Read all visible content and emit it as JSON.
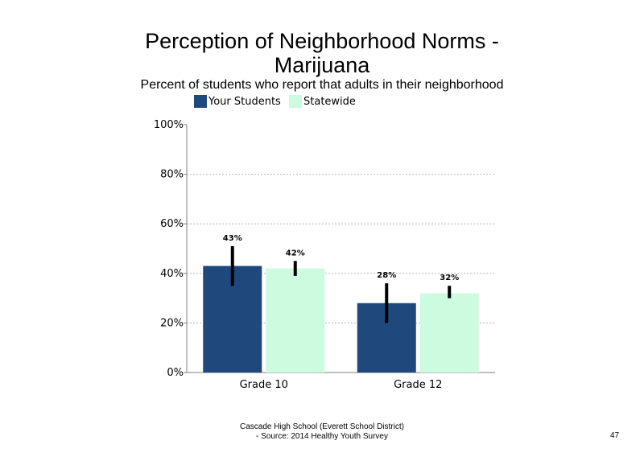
{
  "slide": {
    "title_line1": "Perception of Neighborhood Norms -",
    "title_line2": "Marijuana",
    "subtitle": "Percent of students who report that adults in their neighborhood",
    "footer_line1": "Cascade High School (Everett School District)",
    "footer_line2": "- Source: 2014 Healthy  Youth Survey",
    "page_number": "47"
  },
  "colors": {
    "your_students": "#1f497d",
    "statewide": "#ccfbe0",
    "axis": "#808080",
    "grid": "#b8b8b8",
    "error_bar": "#000000"
  },
  "chart_data": {
    "type": "bar",
    "title": "Perception of Neighborhood Norms - Marijuana",
    "subtitle": "Percent of students who report that adults in their neighborhood",
    "categories": [
      "Grade 10",
      "Grade 12"
    ],
    "series": [
      {
        "name": "Your Students",
        "values": [
          43,
          28
        ],
        "labels": [
          "43%",
          "28%"
        ],
        "error_low": [
          35,
          20
        ],
        "error_high": [
          51,
          36
        ]
      },
      {
        "name": "Statewide",
        "values": [
          42,
          32
        ],
        "labels": [
          "42%",
          "32%"
        ],
        "error_low": [
          39,
          30
        ],
        "error_high": [
          45,
          35
        ]
      }
    ],
    "yticks": [
      "0%",
      "20%",
      "40%",
      "60%",
      "80%",
      "100%"
    ],
    "ylim": [
      0,
      100
    ],
    "grid": true,
    "legend": "top"
  }
}
